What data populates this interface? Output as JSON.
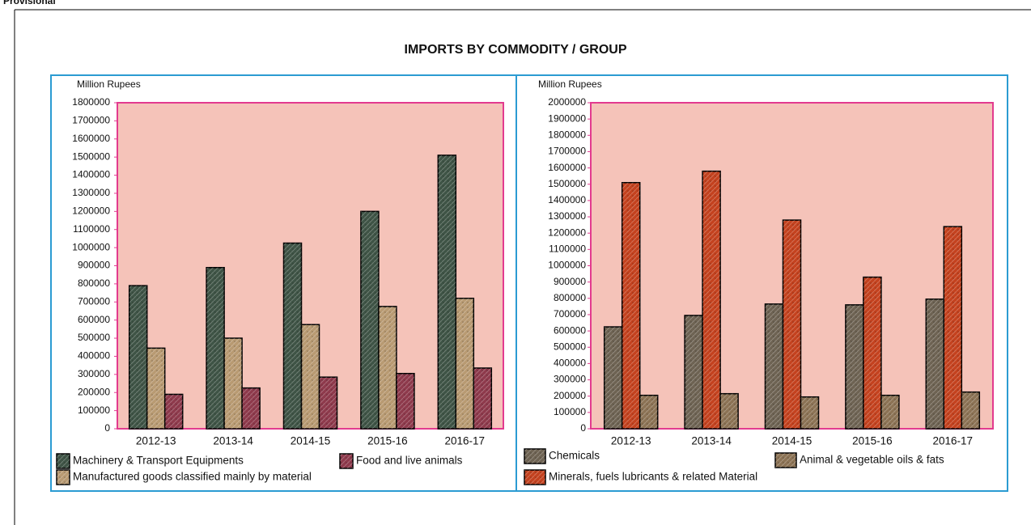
{
  "note": "Provisional",
  "title": "IMPORTS BY COMMODITY / GROUP",
  "chart_data": [
    {
      "type": "bar",
      "y_label": "Million Rupees",
      "categories": [
        "2012-13",
        "2013-14",
        "2014-15",
        "2015-16",
        "2016-17"
      ],
      "series": [
        {
          "name": "Machinery & Transport Equipments",
          "color": "#3f5446",
          "values": [
            790000,
            890000,
            1025000,
            1200000,
            1510000
          ]
        },
        {
          "name": "Manufactured goods classified mainly by material",
          "color": "#b89a72",
          "values": [
            445000,
            500000,
            575000,
            675000,
            720000
          ]
        },
        {
          "name": "Food and live animals",
          "color": "#8e3a4c",
          "values": [
            190000,
            225000,
            285000,
            305000,
            335000
          ]
        }
      ],
      "ylim": [
        0,
        1800000
      ],
      "yticks": [
        0,
        100000,
        200000,
        300000,
        400000,
        500000,
        600000,
        700000,
        800000,
        900000,
        1000000,
        1100000,
        1200000,
        1300000,
        1400000,
        1500000,
        1600000,
        1700000,
        1800000
      ]
    },
    {
      "type": "bar",
      "y_label": "Million Rupees",
      "categories": [
        "2012-13",
        "2013-14",
        "2014-15",
        "2015-16",
        "2016-17"
      ],
      "series": [
        {
          "name": "Chemicals",
          "color": "#6e6353",
          "values": [
            625000,
            695000,
            765000,
            760000,
            795000
          ]
        },
        {
          "name": "Minerals, fuels lubricants & related Material",
          "color": "#c4421f",
          "values": [
            1510000,
            1580000,
            1280000,
            930000,
            1240000
          ]
        },
        {
          "name": "Animal & vegetable oils & fats",
          "color": "#8c7355",
          "values": [
            205000,
            215000,
            195000,
            205000,
            225000
          ]
        }
      ],
      "ylim": [
        0,
        2000000
      ],
      "yticks": [
        0,
        100000,
        200000,
        300000,
        400000,
        500000,
        600000,
        700000,
        800000,
        900000,
        1000000,
        1100000,
        1200000,
        1300000,
        1400000,
        1500000,
        1600000,
        1700000,
        1800000,
        1900000,
        2000000
      ]
    }
  ]
}
